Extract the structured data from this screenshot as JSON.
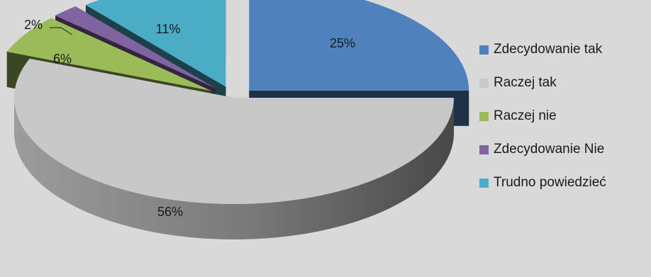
{
  "chart_data": {
    "type": "pie",
    "categories": [
      "Zdecydowanie tak",
      "Raczej tak",
      "Raczej nie",
      "Zdecydowanie Nie",
      "Trudno powiedzieć"
    ],
    "values": [
      25,
      56,
      6,
      2,
      11
    ],
    "labels": [
      "25%",
      "56%",
      "6%",
      "2%",
      "11%"
    ],
    "colors": [
      "#4f81bd",
      "#c8c8c8",
      "#9bbb59",
      "#8064a2",
      "#4bacc6"
    ],
    "legend_position": "right",
    "style": "3d-exploded"
  }
}
